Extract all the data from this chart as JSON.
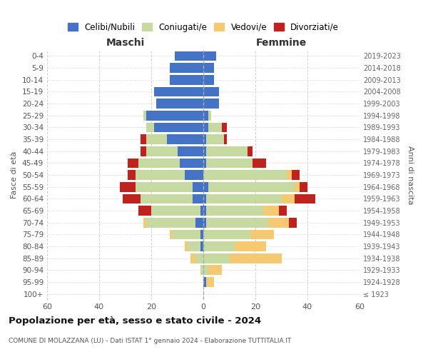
{
  "age_groups": [
    "100+",
    "95-99",
    "90-94",
    "85-89",
    "80-84",
    "75-79",
    "70-74",
    "65-69",
    "60-64",
    "55-59",
    "50-54",
    "45-49",
    "40-44",
    "35-39",
    "30-34",
    "25-29",
    "20-24",
    "15-19",
    "10-14",
    "5-9",
    "0-4"
  ],
  "birth_years": [
    "≤ 1923",
    "1924-1928",
    "1929-1933",
    "1934-1938",
    "1939-1943",
    "1944-1948",
    "1949-1953",
    "1954-1958",
    "1959-1963",
    "1964-1968",
    "1969-1973",
    "1974-1978",
    "1979-1983",
    "1984-1988",
    "1989-1993",
    "1994-1998",
    "1999-2003",
    "2004-2008",
    "2009-2013",
    "2014-2018",
    "2019-2023"
  ],
  "colors": {
    "celibe": "#4472C4",
    "coniugato": "#C6D9A0",
    "vedovo": "#F5C971",
    "divorziato": "#C0231E"
  },
  "maschi": {
    "celibe": [
      0,
      0,
      0,
      0,
      1,
      1,
      3,
      1,
      4,
      4,
      7,
      9,
      10,
      14,
      19,
      22,
      18,
      19,
      13,
      13,
      11
    ],
    "coniugato": [
      0,
      0,
      1,
      3,
      5,
      11,
      19,
      19,
      20,
      22,
      19,
      16,
      12,
      8,
      3,
      1,
      0,
      0,
      0,
      0,
      0
    ],
    "vedovo": [
      0,
      0,
      0,
      2,
      1,
      1,
      1,
      0,
      0,
      0,
      0,
      0,
      0,
      0,
      0,
      0,
      0,
      0,
      0,
      0,
      0
    ],
    "divorziato": [
      0,
      0,
      0,
      0,
      0,
      0,
      0,
      5,
      7,
      6,
      3,
      4,
      2,
      2,
      0,
      0,
      0,
      0,
      0,
      0,
      0
    ]
  },
  "femmine": {
    "nubile": [
      0,
      1,
      0,
      0,
      0,
      0,
      1,
      1,
      1,
      2,
      0,
      1,
      1,
      1,
      2,
      2,
      6,
      6,
      4,
      4,
      5
    ],
    "coniugata": [
      0,
      0,
      2,
      10,
      12,
      18,
      24,
      22,
      29,
      33,
      32,
      18,
      16,
      7,
      5,
      1,
      0,
      0,
      0,
      0,
      0
    ],
    "vedova": [
      0,
      3,
      5,
      20,
      12,
      9,
      8,
      6,
      5,
      2,
      2,
      0,
      0,
      0,
      0,
      0,
      0,
      0,
      0,
      0,
      0
    ],
    "divorziata": [
      0,
      0,
      0,
      0,
      0,
      0,
      3,
      3,
      8,
      3,
      3,
      5,
      2,
      1,
      2,
      0,
      0,
      0,
      0,
      0,
      0
    ]
  },
  "xlim": 60,
  "title": "Popolazione per età, sesso e stato civile - 2024",
  "subtitle": "COMUNE DI MOLAZZANA (LU) - Dati ISTAT 1° gennaio 2024 - Elaborazione TUTTITALIA.IT",
  "ylabel_left": "Fasce di età",
  "ylabel_right": "Anni di nascita",
  "legend_labels": [
    "Celibi/Nubili",
    "Coniugati/e",
    "Vedovi/e",
    "Divorziati/e"
  ],
  "maschi_label": "Maschi",
  "femmine_label": "Femmine",
  "bg_color": "#FFFFFF",
  "grid_color": "#CCCCCC"
}
